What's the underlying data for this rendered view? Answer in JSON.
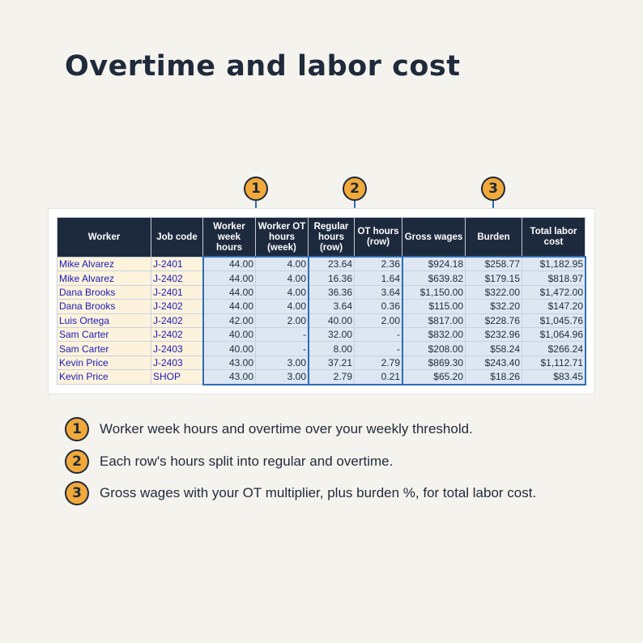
{
  "title": "Overtime and labor cost",
  "callouts": [
    "1",
    "2",
    "3"
  ],
  "table": {
    "headers": [
      "Worker",
      "Job code",
      "Worker week hours",
      "Worker OT hours (week)",
      "Regular hours (row)",
      "OT hours (row)",
      "Gross wages",
      "Burden",
      "Total labor cost"
    ],
    "rows": [
      [
        "Mike Alvarez",
        "J-2401",
        "44.00",
        "4.00",
        "23.64",
        "2.36",
        "$924.18",
        "$258.77",
        "$1,182.95"
      ],
      [
        "Mike Alvarez",
        "J-2402",
        "44.00",
        "4.00",
        "16.36",
        "1.64",
        "$639.82",
        "$179.15",
        "$818.97"
      ],
      [
        "Dana Brooks",
        "J-2401",
        "44.00",
        "4.00",
        "36.36",
        "3.64",
        "$1,150.00",
        "$322.00",
        "$1,472.00"
      ],
      [
        "Dana Brooks",
        "J-2402",
        "44.00",
        "4.00",
        "3.64",
        "0.36",
        "$115.00",
        "$32.20",
        "$147.20"
      ],
      [
        "Luis Ortega",
        "J-2402",
        "42.00",
        "2.00",
        "40.00",
        "2.00",
        "$817.00",
        "$228.76",
        "$1,045.76"
      ],
      [
        "Sam Carter",
        "J-2402",
        "40.00",
        "-",
        "32.00",
        "-",
        "$832.00",
        "$232.96",
        "$1,064.96"
      ],
      [
        "Sam Carter",
        "J-2403",
        "40.00",
        "-",
        "8.00",
        "-",
        "$208.00",
        "$58.24",
        "$266.24"
      ],
      [
        "Kevin Price",
        "J-2403",
        "43.00",
        "3.00",
        "37.21",
        "2.79",
        "$869.30",
        "$243.40",
        "$1,112.71"
      ],
      [
        "Kevin Price",
        "SHOP",
        "43.00",
        "3.00",
        "2.79",
        "0.21",
        "$65.20",
        "$18.26",
        "$83.45"
      ]
    ]
  },
  "legend": [
    {
      "number": "1",
      "text": "Worker week hours and overtime over your weekly threshold."
    },
    {
      "number": "2",
      "text": "Each row's hours split into regular and overtime."
    },
    {
      "number": "3",
      "text": "Gross wages with your OT multiplier, plus burden %, for total labor cost."
    }
  ],
  "colors": {
    "background": "#f5f3ee",
    "header": "#1d2a3d",
    "callout": "#f2a93b",
    "frame": "#2f6db5",
    "text_cells": "#fdf3dc",
    "number_cells": "#dde7f2"
  }
}
